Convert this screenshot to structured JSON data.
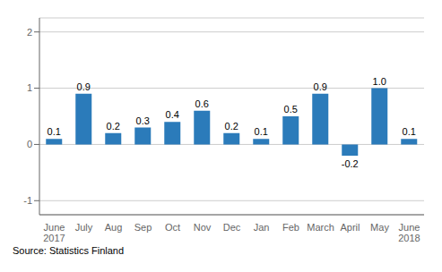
{
  "chart_data": {
    "type": "bar",
    "categories": [
      "June\n2017",
      "July",
      "Aug",
      "Sep",
      "Oct",
      "Nov",
      "Dec",
      "Jan",
      "Feb",
      "March",
      "April",
      "May",
      "June\n2018"
    ],
    "values": [
      0.1,
      0.9,
      0.2,
      0.3,
      0.4,
      0.6,
      0.2,
      0.1,
      0.5,
      0.9,
      -0.2,
      1.0,
      0.1
    ],
    "value_labels": [
      "0.1",
      "0.9",
      "0.2",
      "0.3",
      "0.4",
      "0.6",
      "0.2",
      "0.1",
      "0.5",
      "0.9",
      "-0.2",
      "1.0",
      "0.1"
    ],
    "data_labels": true,
    "color": "#2b7bba",
    "ylim": [
      -1.25,
      2.25
    ],
    "yticks": [
      -1,
      0,
      1,
      2
    ],
    "grid": true,
    "annotations": [
      "Source: Statistics Finland"
    ]
  }
}
